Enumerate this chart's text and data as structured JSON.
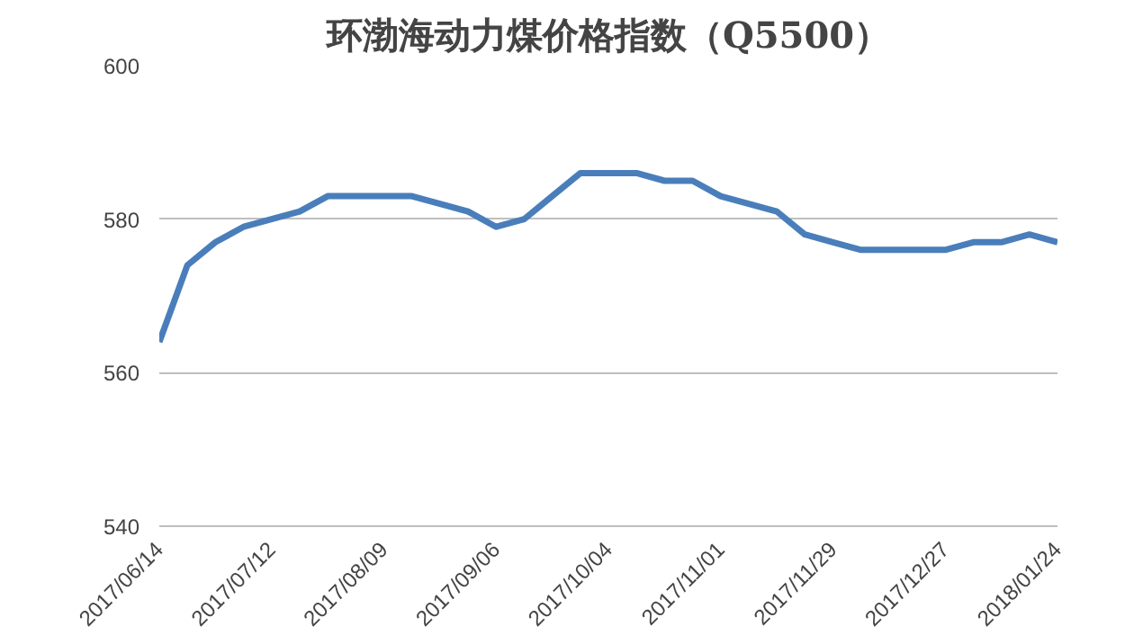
{
  "chart_data": {
    "type": "line",
    "title": "环渤海动力煤价格指数（Q5500）",
    "x": [
      "2017-06-14",
      "2017-06-21",
      "2017-06-28",
      "2017-07-05",
      "2017-07-12",
      "2017-07-19",
      "2017-07-26",
      "2017-08-02",
      "2017-08-09",
      "2017-08-16",
      "2017-08-23",
      "2017-08-30",
      "2017-09-06",
      "2017-09-13",
      "2017-09-20",
      "2017-09-27",
      "2017-10-04",
      "2017-10-11",
      "2017-10-18",
      "2017-10-25",
      "2017-11-01",
      "2017-11-08",
      "2017-11-15",
      "2017-11-22",
      "2017-11-29",
      "2017-12-06",
      "2017-12-13",
      "2017-12-20",
      "2017-12-27",
      "2018-01-03",
      "2018-01-10",
      "2018-01-17",
      "2018-01-24"
    ],
    "series": [
      {
        "color": "#4a7ebb",
        "values": [
          564,
          574,
          577,
          579,
          580,
          581,
          583,
          583,
          583,
          583,
          582,
          581,
          579,
          580,
          583,
          586,
          586,
          586,
          585,
          585,
          583,
          582,
          581,
          578,
          577,
          576,
          576,
          576,
          576,
          577,
          577,
          578,
          577
        ]
      }
    ],
    "xlim": [
      "2017-06-14",
      "2018-01-24"
    ],
    "xticks": [
      {
        "value": "2017-06-14",
        "label": "2017/06/14"
      },
      {
        "value": "2017-07-12",
        "label": "2017/07/12"
      },
      {
        "value": "2017-08-09",
        "label": "2017/08/09"
      },
      {
        "value": "2017-09-06",
        "label": "2017/09/06"
      },
      {
        "value": "2017-10-04",
        "label": "2017/10/04"
      },
      {
        "value": "2017-11-01",
        "label": "2017/11/01"
      },
      {
        "value": "2017-11-29",
        "label": "2017/11/29"
      },
      {
        "value": "2017-12-27",
        "label": "2017/12/27"
      },
      {
        "value": "2018-01-24",
        "label": "2018/01/24"
      }
    ],
    "ylim": [
      540,
      600
    ],
    "yticks": [
      540,
      560,
      580,
      600
    ],
    "grid": "y",
    "marker": "none",
    "line_style": "solid"
  }
}
